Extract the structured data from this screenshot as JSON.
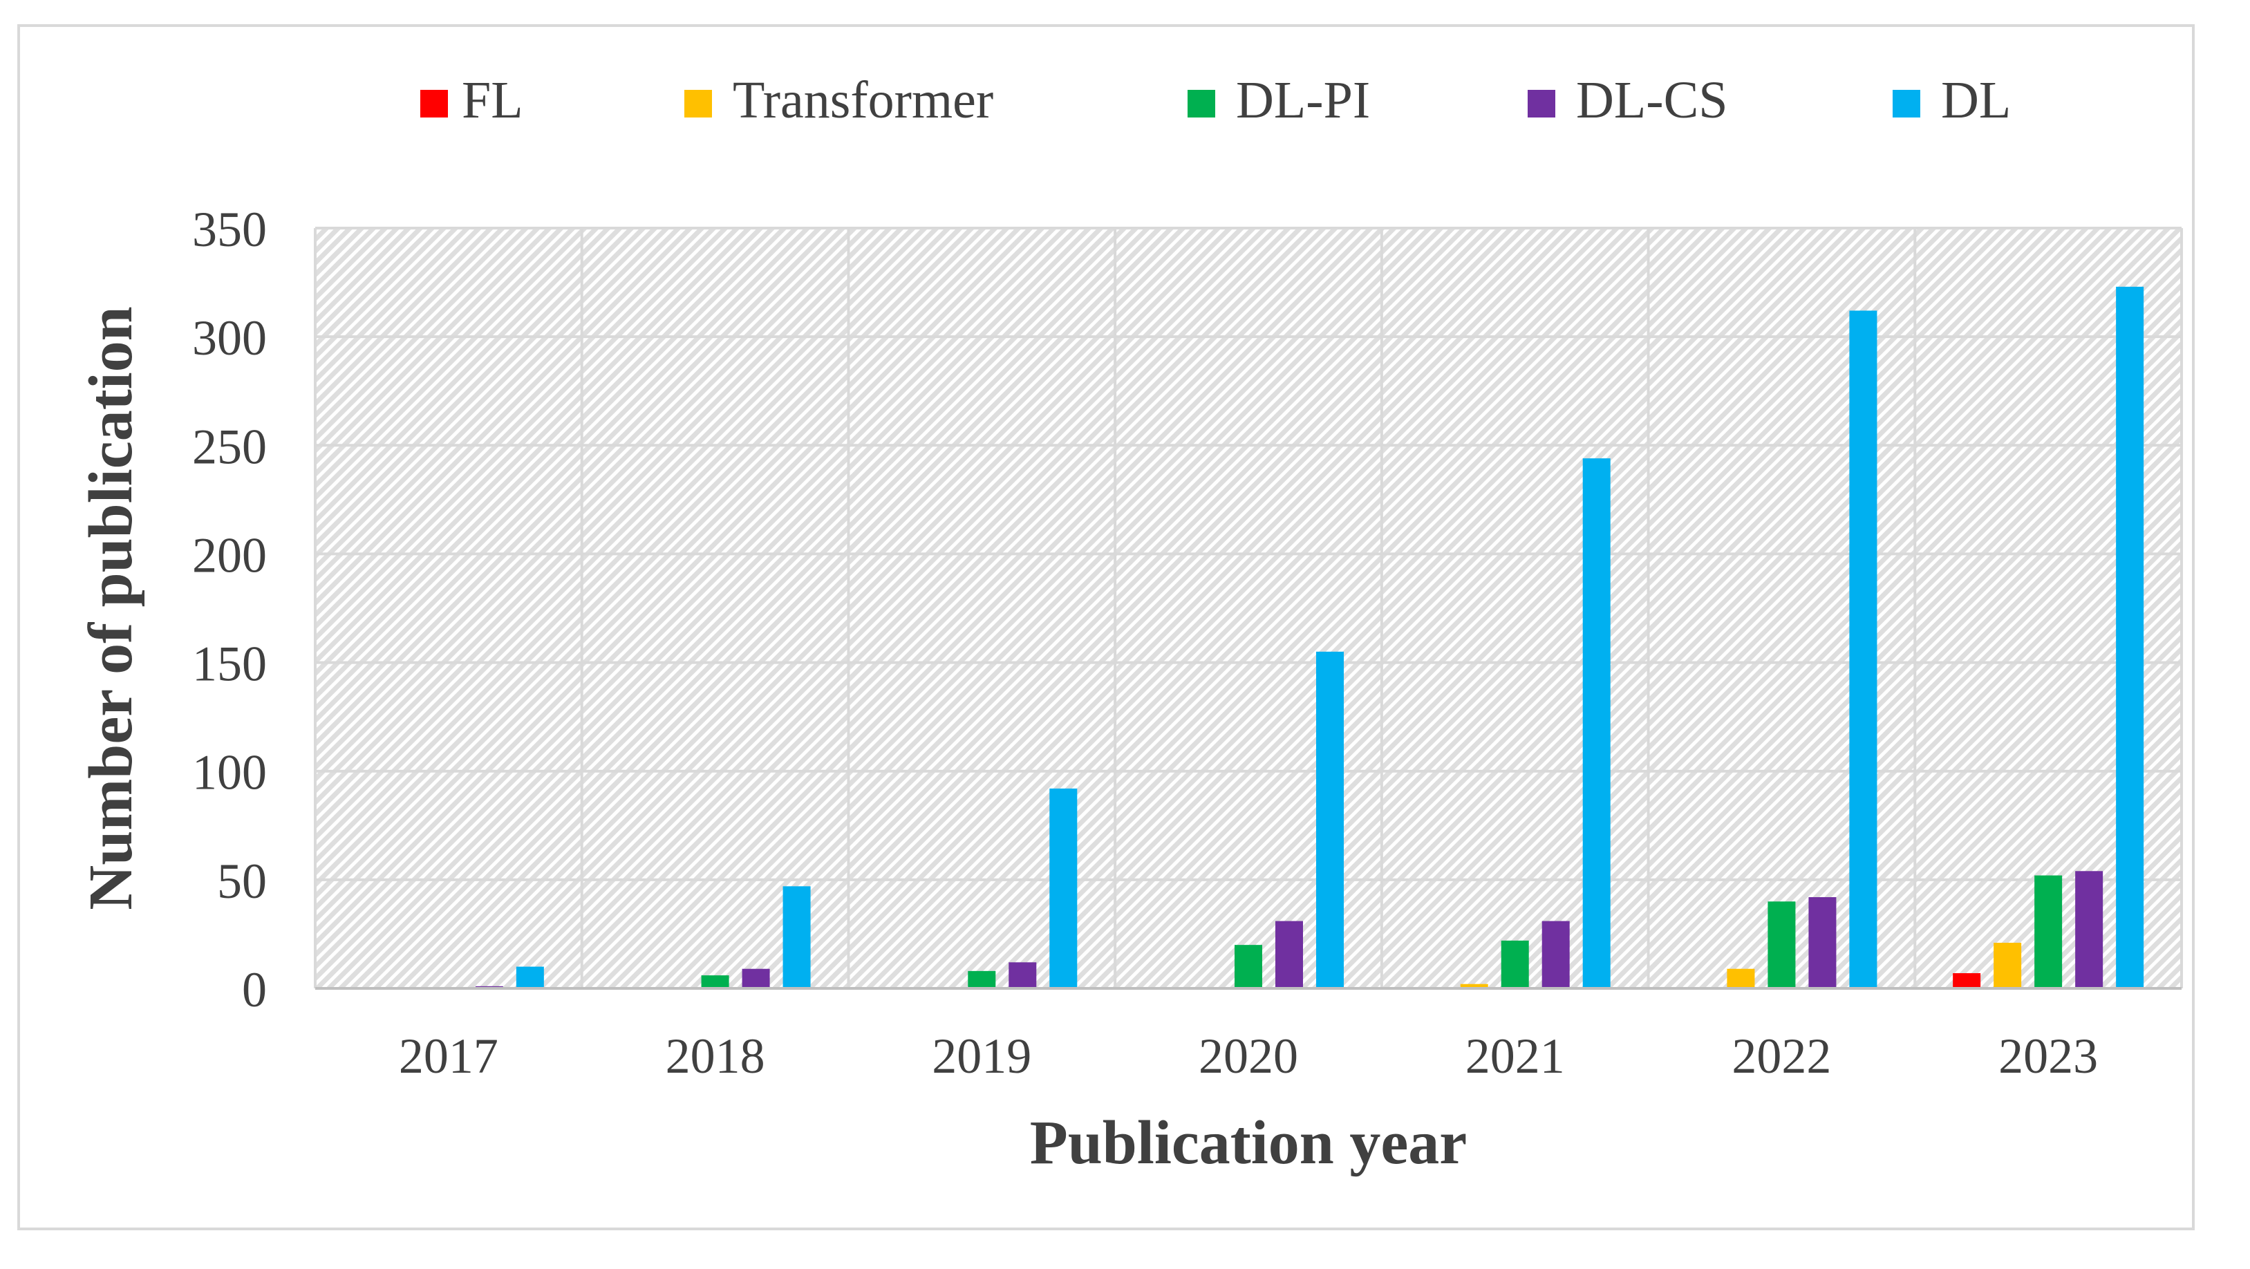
{
  "chart_data": {
    "type": "bar",
    "title": "",
    "xlabel": "Publication year",
    "ylabel": "Number of publication",
    "categories": [
      "2017",
      "2018",
      "2019",
      "2020",
      "2021",
      "2022",
      "2023"
    ],
    "ylim": [
      0,
      350
    ],
    "yticks": [
      "0",
      "50",
      "100",
      "150",
      "200",
      "250",
      "300",
      "350"
    ],
    "grid": true,
    "legend_position": "top",
    "series": [
      {
        "name": "FL",
        "color": "#ff0000",
        "values": [
          0,
          0,
          0,
          0,
          0,
          0,
          7
        ]
      },
      {
        "name": "Transformer",
        "color": "#ffc000",
        "values": [
          0,
          0,
          0,
          0,
          2,
          9,
          21
        ]
      },
      {
        "name": "DL-PI",
        "color": "#00b050",
        "values": [
          0,
          6,
          8,
          20,
          22,
          40,
          52
        ]
      },
      {
        "name": "DL-CS",
        "color": "#7030a0",
        "values": [
          1,
          9,
          12,
          31,
          31,
          42,
          54
        ]
      },
      {
        "name": "DL",
        "color": "#00b0f0",
        "values": [
          10,
          47,
          92,
          155,
          244,
          312,
          323
        ]
      }
    ]
  }
}
